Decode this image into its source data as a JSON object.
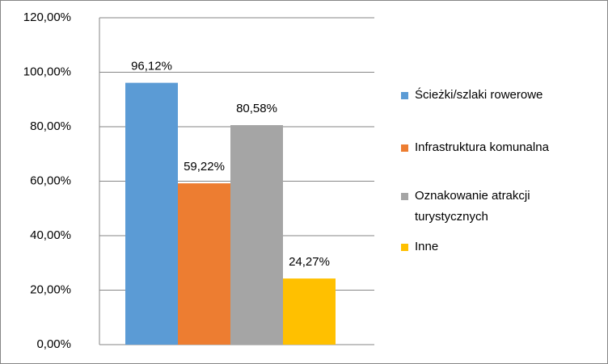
{
  "chart_data": {
    "type": "bar",
    "series": [
      {
        "name": "Ścieżki/szlaki rowerowe",
        "color": "#5b9bd5",
        "values": [
          96.12
        ],
        "value_labels": [
          "96,12%"
        ]
      },
      {
        "name": "Infrastruktura komunalna",
        "color": "#ed7d31",
        "values": [
          59.22
        ],
        "value_labels": [
          "59,22%"
        ]
      },
      {
        "name": "Oznakowanie atrakcji turystycznych",
        "color": "#a5a5a5",
        "values": [
          80.58
        ],
        "value_labels": [
          "80,58%"
        ]
      },
      {
        "name": "Inne",
        "color": "#ffc000",
        "values": [
          24.27
        ],
        "value_labels": [
          "24,27%"
        ]
      }
    ],
    "ylim": [
      0,
      120
    ],
    "yticks": [
      {
        "value": 0,
        "label": "0,00%"
      },
      {
        "value": 20,
        "label": "20,00%"
      },
      {
        "value": 40,
        "label": "40,00%"
      },
      {
        "value": 60,
        "label": "60,00%"
      },
      {
        "value": 80,
        "label": "80,00%"
      },
      {
        "value": 100,
        "label": "100,00%"
      },
      {
        "value": 120,
        "label": "120,00%"
      }
    ],
    "grid": true,
    "legend": "right"
  }
}
